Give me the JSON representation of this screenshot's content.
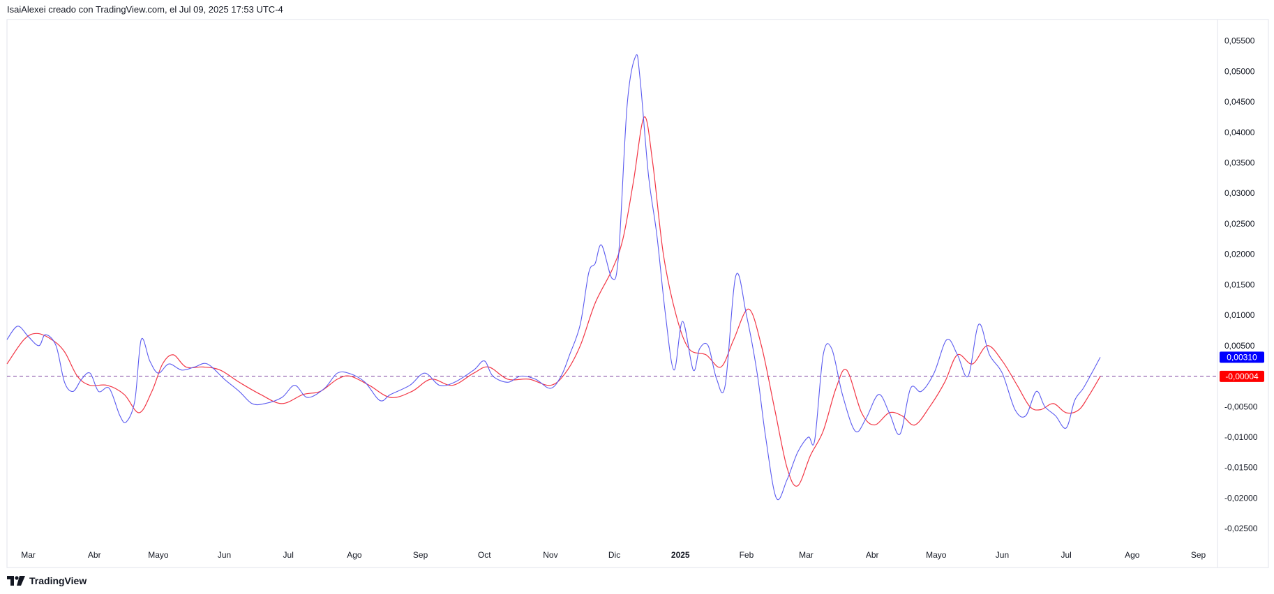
{
  "header": {
    "caption": "IsaiAlexei creado con TradingView.com, el Jul 09, 2025 17:53 UTC-4"
  },
  "footer": {
    "brand": "TradingView"
  },
  "colors": {
    "series_blue": "#5b5bf0",
    "series_red": "#f23645",
    "baseline": "#7b3f9e",
    "badge_blue": "#0000ff",
    "badge_red": "#ff0000",
    "grid_border": "#e0e3eb"
  },
  "chart_data": {
    "type": "line",
    "title": "",
    "xlabel": "",
    "ylabel": "",
    "x_axis": {
      "labels": [
        "Mar",
        "Abr",
        "Mayo",
        "Jun",
        "Jul",
        "Ago",
        "Sep",
        "Oct",
        "Nov",
        "Dic",
        "2025",
        "Feb",
        "Mar",
        "Abr",
        "Mayo",
        "Jun",
        "Jul",
        "Ago",
        "Sep"
      ],
      "bold_labels": [
        "2025"
      ],
      "range": [
        "2024-02-20",
        "2025-09-10"
      ]
    },
    "y_axis": {
      "position": "right",
      "tick_labels": [
        "0,05500",
        "0,05000",
        "0,04500",
        "0,04000",
        "0,03500",
        "0,03000",
        "0,02500",
        "0,02000",
        "0,01500",
        "0,01000",
        "0,00500",
        "-0,00500",
        "-0,01000",
        "-0,01500",
        "-0,02000",
        "-0,02500"
      ],
      "ticks": [
        0.055,
        0.05,
        0.045,
        0.04,
        0.035,
        0.03,
        0.025,
        0.02,
        0.015,
        0.01,
        0.005,
        -0.005,
        -0.01,
        -0.015,
        -0.02,
        -0.025
      ],
      "range": [
        -0.0275,
        0.0585
      ]
    },
    "baseline": {
      "value": 0.0,
      "style": "dashed"
    },
    "last_value_badges": [
      {
        "label": "0,00310",
        "value": 0.0031,
        "series": "blue"
      },
      {
        "label": "-0,00004",
        "value": -4e-05,
        "series": "red"
      }
    ],
    "grid": false,
    "series": [
      {
        "color_key": "blue",
        "points": [
          [
            "2024-02-20",
            0.006
          ],
          [
            "2024-02-25",
            0.0082
          ],
          [
            "2024-03-01",
            0.0065
          ],
          [
            "2024-03-06",
            0.005
          ],
          [
            "2024-03-09",
            0.0068
          ],
          [
            "2024-03-14",
            0.005
          ],
          [
            "2024-03-18",
            -0.001
          ],
          [
            "2024-03-22",
            -0.0025
          ],
          [
            "2024-03-26",
            -0.0005
          ],
          [
            "2024-03-30",
            0.0005
          ],
          [
            "2024-04-03",
            -0.0025
          ],
          [
            "2024-04-08",
            -0.002
          ],
          [
            "2024-04-13",
            -0.0065
          ],
          [
            "2024-04-16",
            -0.0075
          ],
          [
            "2024-04-20",
            -0.004
          ],
          [
            "2024-04-23",
            0.006
          ],
          [
            "2024-04-27",
            0.0025
          ],
          [
            "2024-05-01",
            0.0005
          ],
          [
            "2024-05-06",
            0.002
          ],
          [
            "2024-05-12",
            0.001
          ],
          [
            "2024-05-18",
            0.0015
          ],
          [
            "2024-05-24",
            0.002
          ],
          [
            "2024-06-01",
            -0.0005
          ],
          [
            "2024-06-08",
            -0.0025
          ],
          [
            "2024-06-14",
            -0.0045
          ],
          [
            "2024-06-20",
            -0.0045
          ],
          [
            "2024-06-28",
            -0.0035
          ],
          [
            "2024-07-04",
            -0.0015
          ],
          [
            "2024-07-10",
            -0.0035
          ],
          [
            "2024-07-18",
            -0.002
          ],
          [
            "2024-07-24",
            0.0005
          ],
          [
            "2024-07-30",
            0.0004
          ],
          [
            "2024-08-06",
            -0.001
          ],
          [
            "2024-08-13",
            -0.004
          ],
          [
            "2024-08-18",
            -0.003
          ],
          [
            "2024-08-27",
            -0.0015
          ],
          [
            "2024-09-03",
            0.0005
          ],
          [
            "2024-09-10",
            -0.0015
          ],
          [
            "2024-09-17",
            -0.001
          ],
          [
            "2024-09-26",
            0.001
          ],
          [
            "2024-10-01",
            0.0025
          ],
          [
            "2024-10-05",
            0.0
          ],
          [
            "2024-10-12",
            -0.001
          ],
          [
            "2024-10-18",
            0.0
          ],
          [
            "2024-10-25",
            -0.0005
          ],
          [
            "2024-11-01",
            -0.002
          ],
          [
            "2024-11-06",
            0.0
          ],
          [
            "2024-11-10",
            0.0035
          ],
          [
            "2024-11-15",
            0.0085
          ],
          [
            "2024-11-19",
            0.017
          ],
          [
            "2024-11-22",
            0.0185
          ],
          [
            "2024-11-25",
            0.0215
          ],
          [
            "2024-11-30",
            0.016
          ],
          [
            "2024-12-03",
            0.02
          ],
          [
            "2024-12-07",
            0.0445
          ],
          [
            "2024-12-11",
            0.0525
          ],
          [
            "2024-12-13",
            0.049
          ],
          [
            "2024-12-17",
            0.033
          ],
          [
            "2024-12-21",
            0.023
          ],
          [
            "2024-12-25",
            0.01
          ],
          [
            "2024-12-29",
            0.001
          ],
          [
            "2025-01-02",
            0.009
          ],
          [
            "2025-01-07",
            0.001
          ],
          [
            "2025-01-10",
            0.0045
          ],
          [
            "2025-01-14",
            0.005
          ],
          [
            "2025-01-18",
            -0.0005
          ],
          [
            "2025-01-22",
            -0.0015
          ],
          [
            "2025-01-27",
            0.0165
          ],
          [
            "2025-02-01",
            0.01
          ],
          [
            "2025-02-06",
            0.0005
          ],
          [
            "2025-02-10",
            -0.01
          ],
          [
            "2025-02-15",
            -0.02
          ],
          [
            "2025-02-20",
            -0.017
          ],
          [
            "2025-02-25",
            -0.0125
          ],
          [
            "2025-03-02",
            -0.01
          ],
          [
            "2025-03-05",
            -0.0105
          ],
          [
            "2025-03-09",
            0.0035
          ],
          [
            "2025-03-13",
            0.0045
          ],
          [
            "2025-03-18",
            -0.003
          ],
          [
            "2025-03-24",
            -0.009
          ],
          [
            "2025-03-29",
            -0.007
          ],
          [
            "2025-04-04",
            -0.003
          ],
          [
            "2025-04-09",
            -0.006
          ],
          [
            "2025-04-14",
            -0.0095
          ],
          [
            "2025-04-19",
            -0.002
          ],
          [
            "2025-04-24",
            -0.0025
          ],
          [
            "2025-04-30",
            0.0005
          ],
          [
            "2025-05-06",
            0.006
          ],
          [
            "2025-05-11",
            0.0035
          ],
          [
            "2025-05-16",
            0.0
          ],
          [
            "2025-05-21",
            0.0085
          ],
          [
            "2025-05-26",
            0.0035
          ],
          [
            "2025-06-01",
            0.0005
          ],
          [
            "2025-06-07",
            -0.0055
          ],
          [
            "2025-06-12",
            -0.0065
          ],
          [
            "2025-06-17",
            -0.0025
          ],
          [
            "2025-06-21",
            -0.005
          ],
          [
            "2025-06-26",
            -0.0065
          ],
          [
            "2025-07-01",
            -0.0085
          ],
          [
            "2025-07-05",
            -0.004
          ],
          [
            "2025-07-09",
            -0.002
          ],
          [
            "2025-07-13",
            0.0005
          ],
          [
            "2025-07-17",
            0.0031
          ]
        ]
      },
      {
        "color_key": "red",
        "points": [
          [
            "2024-02-20",
            0.002
          ],
          [
            "2024-02-28",
            0.006
          ],
          [
            "2024-03-05",
            0.007
          ],
          [
            "2024-03-12",
            0.006
          ],
          [
            "2024-03-18",
            0.004
          ],
          [
            "2024-03-24",
            0.0
          ],
          [
            "2024-03-30",
            -0.0015
          ],
          [
            "2024-04-07",
            -0.0015
          ],
          [
            "2024-04-15",
            -0.003
          ],
          [
            "2024-04-22",
            -0.006
          ],
          [
            "2024-04-28",
            -0.0025
          ],
          [
            "2024-05-03",
            0.002
          ],
          [
            "2024-05-08",
            0.0035
          ],
          [
            "2024-05-14",
            0.0015
          ],
          [
            "2024-05-22",
            0.0015
          ],
          [
            "2024-05-30",
            0.001
          ],
          [
            "2024-06-08",
            -0.001
          ],
          [
            "2024-06-18",
            -0.003
          ],
          [
            "2024-06-28",
            -0.0045
          ],
          [
            "2024-07-08",
            -0.003
          ],
          [
            "2024-07-16",
            -0.0025
          ],
          [
            "2024-07-24",
            -0.0005
          ],
          [
            "2024-07-30",
            0.0
          ],
          [
            "2024-08-08",
            -0.0015
          ],
          [
            "2024-08-18",
            -0.0035
          ],
          [
            "2024-08-28",
            -0.0025
          ],
          [
            "2024-09-06",
            -0.0005
          ],
          [
            "2024-09-16",
            -0.0015
          ],
          [
            "2024-09-26",
            0.0005
          ],
          [
            "2024-10-03",
            0.0015
          ],
          [
            "2024-10-12",
            -0.0005
          ],
          [
            "2024-10-22",
            -0.0005
          ],
          [
            "2024-11-01",
            -0.0015
          ],
          [
            "2024-11-08",
            0.0005
          ],
          [
            "2024-11-15",
            0.005
          ],
          [
            "2024-11-22",
            0.012
          ],
          [
            "2024-11-30",
            0.0175
          ],
          [
            "2024-12-05",
            0.0225
          ],
          [
            "2024-12-10",
            0.032
          ],
          [
            "2024-12-15",
            0.0425
          ],
          [
            "2024-12-19",
            0.035
          ],
          [
            "2024-12-24",
            0.02
          ],
          [
            "2024-12-30",
            0.01
          ],
          [
            "2025-01-05",
            0.0045
          ],
          [
            "2025-01-13",
            0.0035
          ],
          [
            "2025-01-20",
            0.0015
          ],
          [
            "2025-01-26",
            0.006
          ],
          [
            "2025-02-02",
            0.011
          ],
          [
            "2025-02-08",
            0.005
          ],
          [
            "2025-02-14",
            -0.005
          ],
          [
            "2025-02-20",
            -0.015
          ],
          [
            "2025-02-25",
            -0.018
          ],
          [
            "2025-03-03",
            -0.013
          ],
          [
            "2025-03-09",
            -0.009
          ],
          [
            "2025-03-15",
            -0.002
          ],
          [
            "2025-03-20",
            0.001
          ],
          [
            "2025-03-27",
            -0.006
          ],
          [
            "2025-04-02",
            -0.008
          ],
          [
            "2025-04-09",
            -0.006
          ],
          [
            "2025-04-15",
            -0.0065
          ],
          [
            "2025-04-21",
            -0.008
          ],
          [
            "2025-04-28",
            -0.005
          ],
          [
            "2025-05-05",
            -0.001
          ],
          [
            "2025-05-11",
            0.0035
          ],
          [
            "2025-05-18",
            0.002
          ],
          [
            "2025-05-25",
            0.005
          ],
          [
            "2025-06-01",
            0.0025
          ],
          [
            "2025-06-08",
            -0.0015
          ],
          [
            "2025-06-14",
            -0.005
          ],
          [
            "2025-06-19",
            -0.0055
          ],
          [
            "2025-06-25",
            -0.0045
          ],
          [
            "2025-07-01",
            -0.006
          ],
          [
            "2025-07-07",
            -0.0055
          ],
          [
            "2025-07-12",
            -0.003
          ],
          [
            "2025-07-17",
            -4e-05
          ]
        ]
      }
    ]
  }
}
